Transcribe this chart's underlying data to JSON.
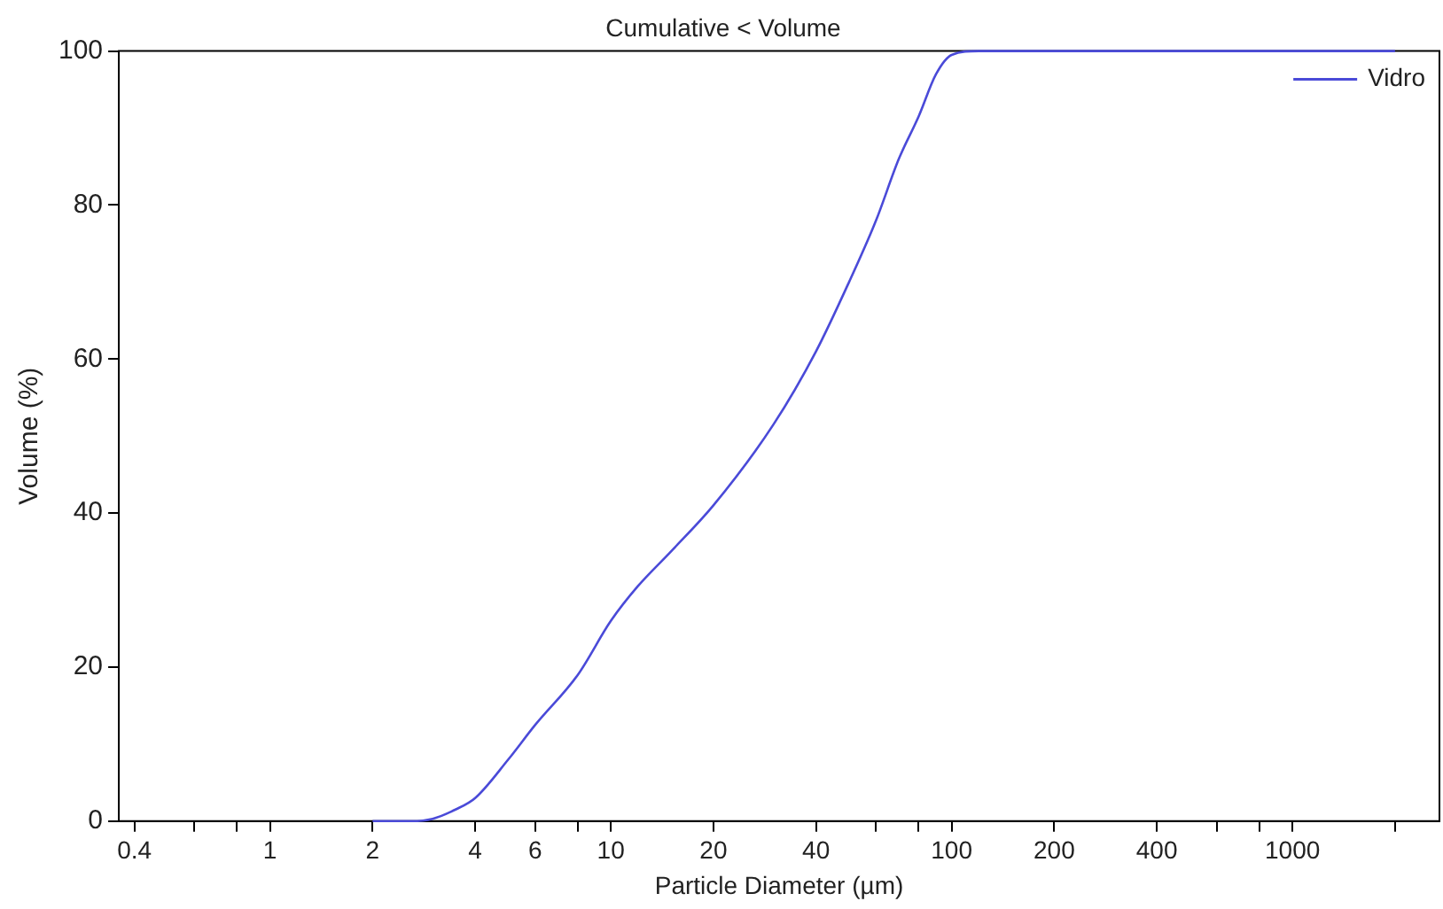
{
  "chart_data": {
    "type": "line",
    "title": "Cumulative < Volume",
    "xlabel": "Particle Diameter (µm)",
    "ylabel": "Volume (%)",
    "x": [
      2,
      2.6,
      3,
      3.5,
      4,
      5,
      6,
      8,
      10,
      12,
      15,
      20,
      30,
      40,
      50,
      60,
      70,
      80,
      90,
      100,
      120,
      2000
    ],
    "series": [
      {
        "name": "Vidro",
        "color": "#4a4ad8",
        "values": [
          0,
          0,
          0.3,
          1.5,
          3,
          8,
          12.5,
          19,
          26,
          30.5,
          35,
          41,
          51.5,
          61,
          70,
          78,
          86,
          91.5,
          97,
          99.5,
          100,
          100
        ]
      }
    ],
    "log": "x",
    "xlim": [
      0.36,
      2700
    ],
    "ylim": [
      0,
      100
    ],
    "xticks": [
      0.4,
      {
        "value": 0.6,
        "label": null
      },
      {
        "value": 0.8,
        "label": null
      },
      1,
      2,
      4,
      6,
      {
        "value": 8,
        "label": null
      },
      10,
      20,
      40,
      {
        "value": 60,
        "label": null
      },
      {
        "value": 80,
        "label": null
      },
      100,
      200,
      400,
      {
        "value": 600,
        "label": null
      },
      {
        "value": 800,
        "label": null
      },
      1000,
      {
        "value": 2000,
        "label": null
      }
    ],
    "yticks": [
      0,
      20,
      40,
      60,
      80,
      100
    ],
    "grid": false,
    "legend": "top right",
    "marker": "none",
    "line_style": "solid"
  }
}
